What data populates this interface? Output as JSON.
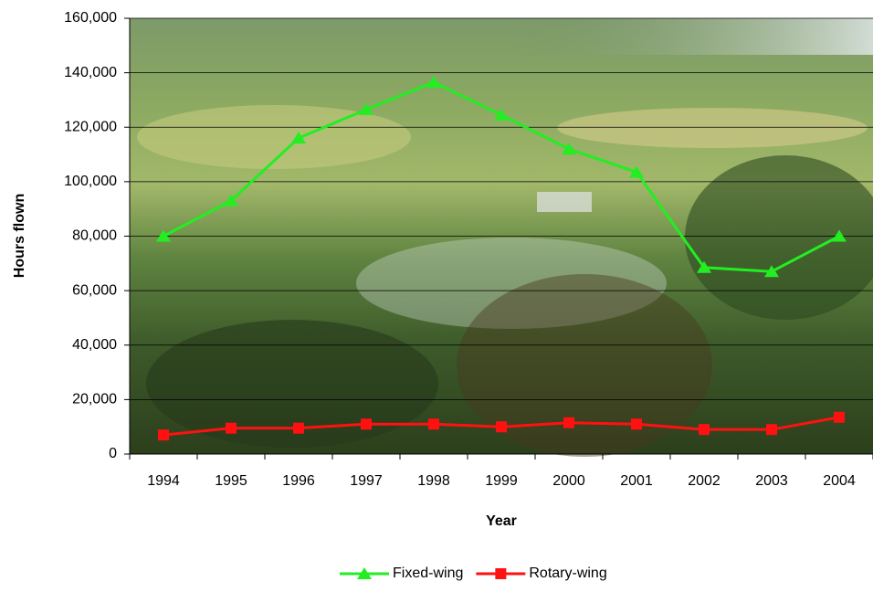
{
  "chart_data": {
    "type": "line",
    "x_label": "Year",
    "y_label": "Hours flown",
    "categories": [
      "1994",
      "1995",
      "1996",
      "1997",
      "1998",
      "1999",
      "2000",
      "2001",
      "2002",
      "2003",
      "2004"
    ],
    "series": [
      {
        "name": "Fixed-wing",
        "color": "#22ee22",
        "marker": "triangle",
        "values": [
          80000,
          93000,
          116000,
          126500,
          136500,
          124500,
          112000,
          103500,
          68500,
          67000,
          80000
        ]
      },
      {
        "name": "Rotary-wing",
        "color": "#ff1111",
        "marker": "square",
        "values": [
          7000,
          9500,
          9500,
          11000,
          11000,
          10000,
          11500,
          11000,
          9000,
          9000,
          13500
        ]
      }
    ],
    "ylim": [
      0,
      160000
    ],
    "yticks": [
      0,
      {
        "value": 20000,
        "label": "20,000"
      },
      {
        "value": 40000,
        "label": "40,000"
      },
      {
        "value": 60000,
        "label": "60,000"
      },
      {
        "value": 80000,
        "label": "80,000"
      },
      {
        "value": 100000,
        "label": "100,000"
      },
      {
        "value": 120000,
        "label": "120,000"
      },
      {
        "value": 140000,
        "label": "140,000"
      },
      {
        "value": 160000,
        "label": "160,000"
      }
    ],
    "grid": true
  }
}
